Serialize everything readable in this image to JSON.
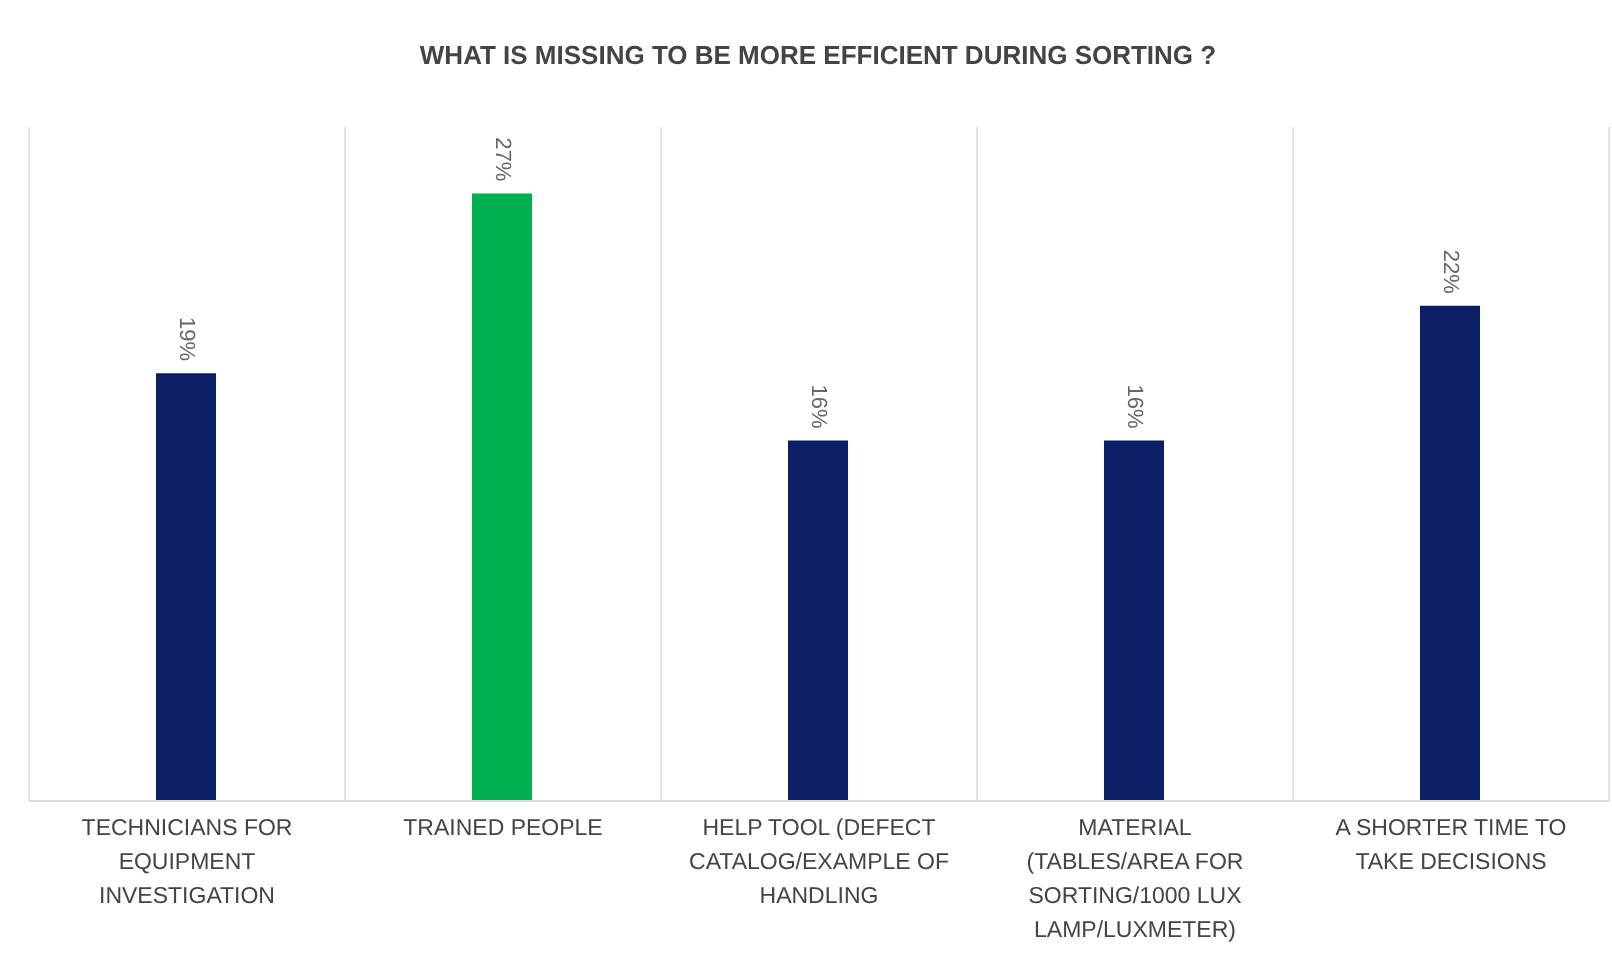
{
  "chart_data": {
    "type": "bar",
    "title": "WHAT IS MISSING TO BE MORE EFFICIENT DURING SORTING ?",
    "categories": [
      "TECHNICIANS FOR EQUIPMENT INVESTIGATION",
      "TRAINED PEOPLE",
      "HELP TOOL (DEFECT CATALOG/EXAMPLE OF HANDLING",
      "MATERIAL (TABLES/AREA FOR SORTING/1000 LUX LAMP/LUXMETER)",
      "A SHORTER TIME TO TAKE DECISIONS"
    ],
    "values": [
      19,
      27,
      16,
      16,
      22
    ],
    "colors": [
      "#0c1f66",
      "#00b050",
      "#0c1f66",
      "#0c1f66",
      "#0c1f66"
    ],
    "value_labels": [
      "19%",
      "27%",
      "16%",
      "16%",
      "22%"
    ],
    "ylim": [
      0,
      30
    ],
    "grid": "x",
    "tick_labels": "x"
  }
}
